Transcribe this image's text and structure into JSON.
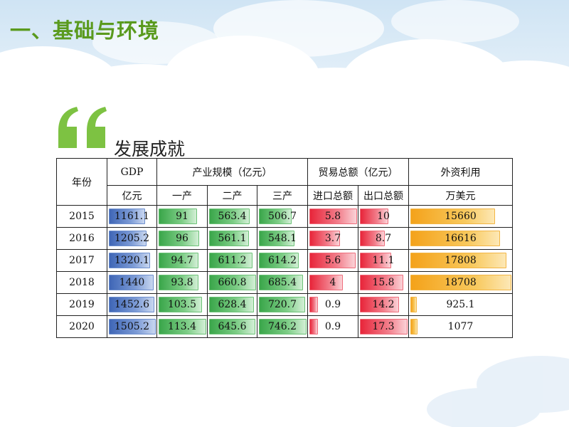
{
  "heading": "一、基础与环境",
  "subtitle": "发展成就",
  "colors": {
    "gdp": "#4a6fbf",
    "industry": "#4cb05a",
    "trade": "#ee3b4e",
    "fdi": "#f6ae2c",
    "heading": "#5a9a1e"
  },
  "table": {
    "year_label": "年份",
    "gdp_label": "GDP",
    "gdp_unit": "亿元",
    "industry_label": "产业规模（亿元）",
    "primary_label": "一产",
    "secondary_label": "二产",
    "tertiary_label": "三产",
    "trade_label": "贸易总额（亿元）",
    "import_label": "进口总额",
    "export_label": "出口总额",
    "fdi_label": "外资利用",
    "fdi_unit": "万美元",
    "rows": [
      {
        "year": "2015",
        "gdp": "1161.1",
        "primary": "91",
        "secondary": "563.4",
        "tertiary": "506.7",
        "import": "5.8",
        "export": "10",
        "fdi": "15660"
      },
      {
        "year": "2016",
        "gdp": "1205.2",
        "primary": "96",
        "secondary": "561.1",
        "tertiary": "548.1",
        "import": "3.7",
        "export": "8.7",
        "fdi": "16616"
      },
      {
        "year": "2017",
        "gdp": "1320.1",
        "primary": "94.7",
        "secondary": "611.2",
        "tertiary": "614.2",
        "import": "5.6",
        "export": "11.1",
        "fdi": "17808"
      },
      {
        "year": "2018",
        "gdp": "1440",
        "primary": "93.8",
        "secondary": "660.8",
        "tertiary": "685.4",
        "import": "4",
        "export": "15.8",
        "fdi": "18708"
      },
      {
        "year": "2019",
        "gdp": "1452.6",
        "primary": "103.5",
        "secondary": "628.4",
        "tertiary": "720.7",
        "import": "0.9",
        "export": "14.2",
        "fdi": "925.1"
      },
      {
        "year": "2020",
        "gdp": "1505.2",
        "primary": "113.4",
        "secondary": "645.6",
        "tertiary": "746.2",
        "import": "0.9",
        "export": "17.3",
        "fdi": "1077"
      }
    ]
  }
}
